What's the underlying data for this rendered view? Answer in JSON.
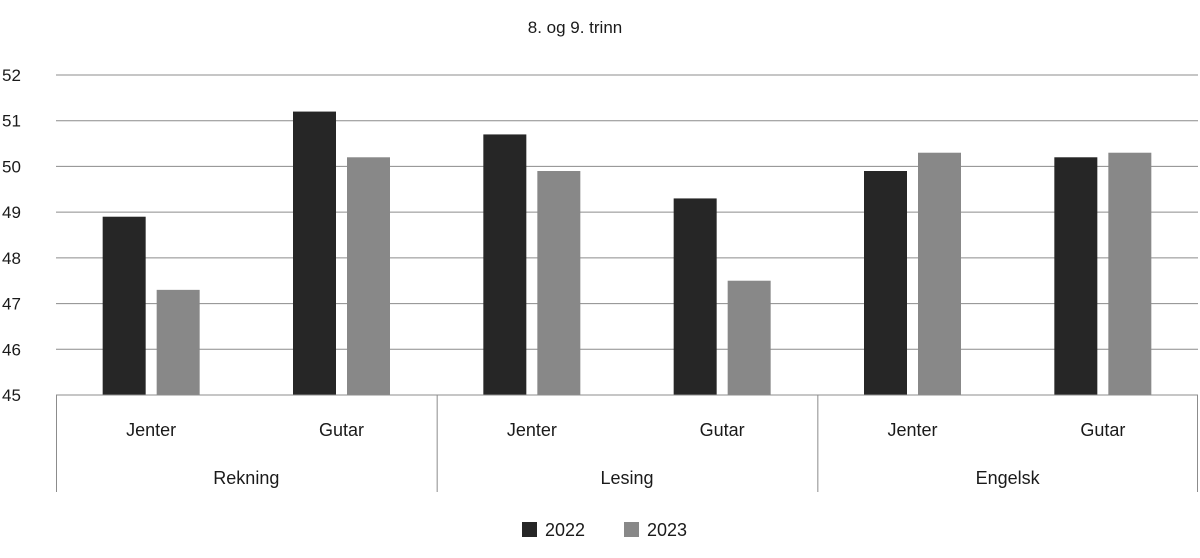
{
  "chart_data": {
    "type": "bar",
    "title": "8. og 9. trinn",
    "xlabel": "",
    "ylabel": "",
    "ylim": [
      45,
      52
    ],
    "yticks": [
      45,
      46,
      47,
      48,
      49,
      50,
      51,
      52
    ],
    "grid": true,
    "legend_position": "bottom",
    "groups": [
      {
        "label": "Rekning",
        "categories": [
          "Jenter",
          "Gutar"
        ]
      },
      {
        "label": "Lesing",
        "categories": [
          "Jenter",
          "Gutar"
        ]
      },
      {
        "label": "Engelsk",
        "categories": [
          "Jenter",
          "Gutar"
        ]
      }
    ],
    "series": [
      {
        "name": "2022",
        "color": "#262626",
        "values": [
          48.9,
          51.2,
          50.7,
          49.3,
          49.9,
          50.2
        ]
      },
      {
        "name": "2023",
        "color": "#888888",
        "values": [
          47.3,
          50.2,
          49.9,
          47.5,
          50.3,
          50.3
        ]
      }
    ]
  }
}
